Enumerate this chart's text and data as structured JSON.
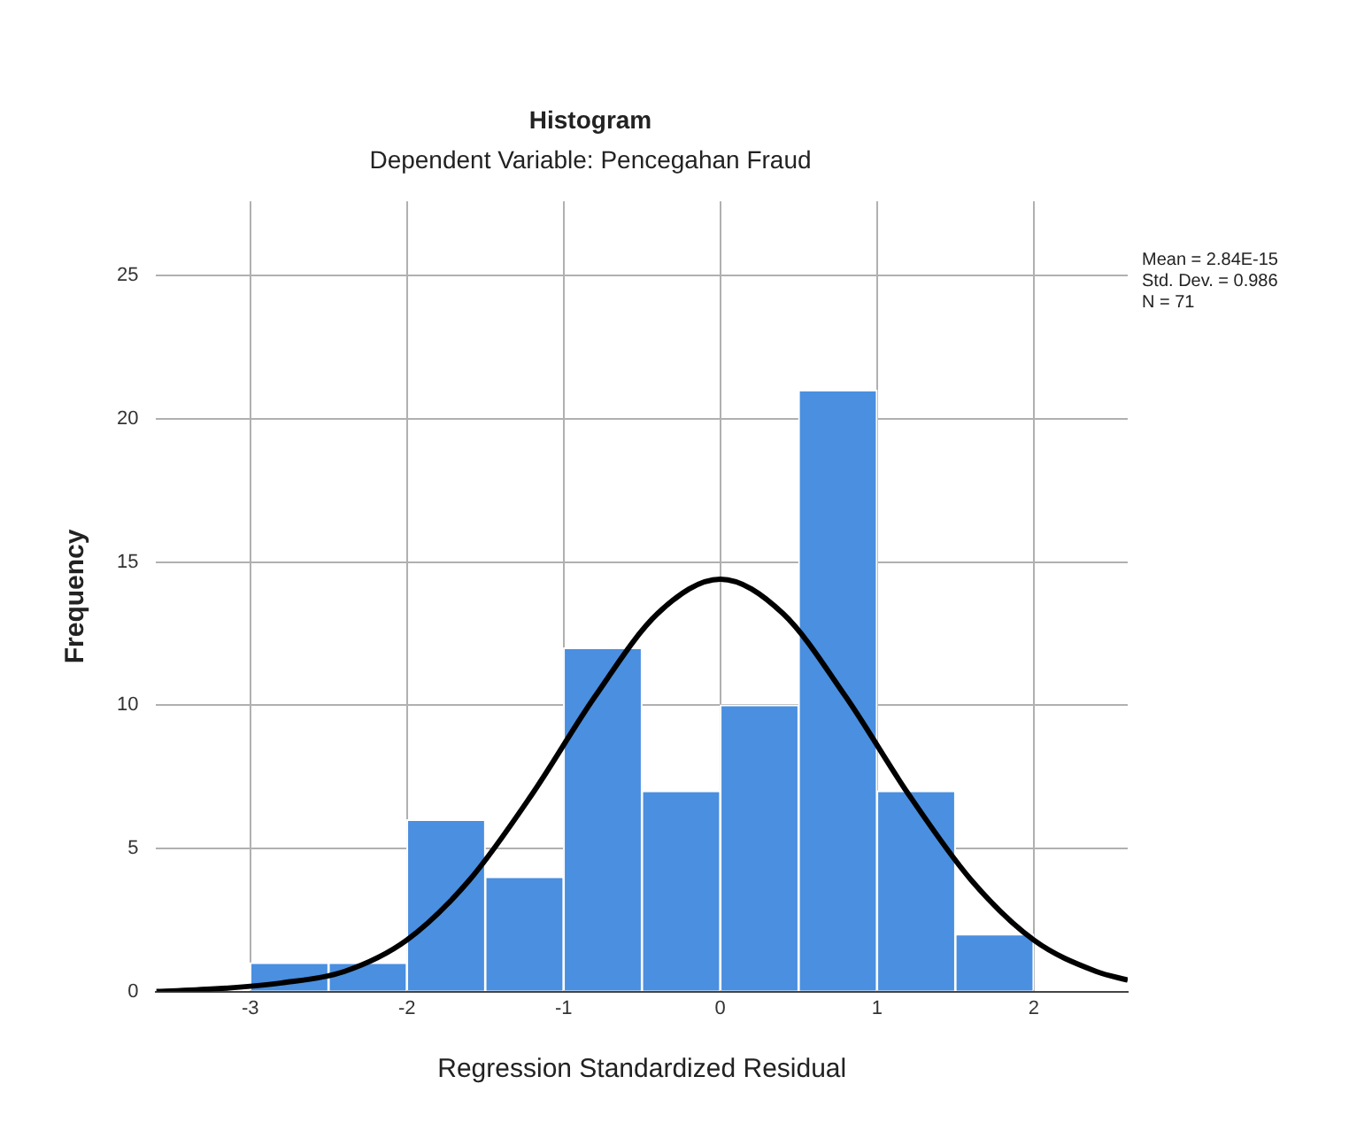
{
  "chart_data": {
    "type": "histogram",
    "title": "Histogram",
    "subtitle": "Dependent Variable: Pencegahan Fraud",
    "xlabel": "Regression Standardized Residual",
    "ylabel": "Frequency",
    "bins": [
      -3,
      -2.5,
      -2,
      -1.5,
      -1,
      -0.5,
      0,
      0.5,
      1,
      1.5,
      2
    ],
    "values": [
      1,
      1,
      6,
      4,
      12,
      7,
      10,
      21,
      7,
      2
    ],
    "color": "#4a8fe0",
    "series": [
      {
        "type": "line",
        "color": "#000000",
        "x": [
          -3.6,
          -3.2,
          -2.8,
          -2.4,
          -2,
          -1.6,
          -1.2,
          -0.8,
          -0.4,
          0,
          0.4,
          0.8,
          1.2,
          1.6,
          2,
          2.4,
          2.6
        ],
        "values": [
          0.0,
          0.1,
          0.3,
          0.7,
          1.8,
          3.9,
          6.9,
          10.3,
          13.2,
          14.4,
          13.2,
          10.3,
          6.9,
          3.9,
          1.8,
          0.7,
          0.4
        ]
      }
    ],
    "xlim": [
      -3.6,
      2.6
    ],
    "xticks": [
      -3,
      -2,
      -1,
      0,
      1,
      2
    ],
    "ylim": [
      0,
      27.6
    ],
    "yticks": [
      0,
      5,
      10,
      15,
      20,
      25
    ],
    "grid": true,
    "annotations": [
      "Mean = 2.84E-15",
      "Std. Dev. = 0.986",
      "N = 71"
    ]
  }
}
